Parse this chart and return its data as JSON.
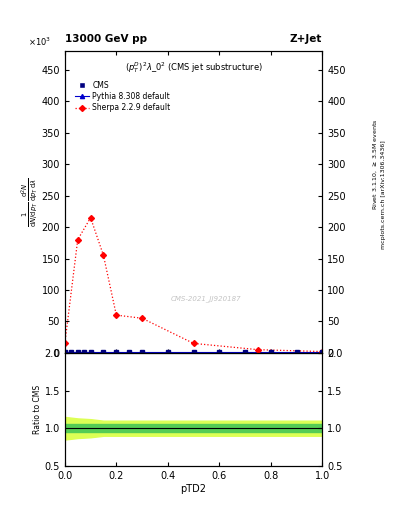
{
  "title_left": "13000 GeV pp",
  "title_right": "Z+Jet",
  "subtitle": "$(p_T^D)^2\\lambda\\_0^2$ (CMS jet substructure)",
  "watermark": "CMS-2021_JJ920187",
  "xlabel": "pTD2",
  "ylim_main": [
    0,
    480
  ],
  "ylim_ratio": [
    0.5,
    2.0
  ],
  "yticks_main": [
    0,
    50,
    100,
    150,
    200,
    250,
    300,
    350,
    400,
    450
  ],
  "yticks_ratio": [
    0.5,
    1.0,
    1.5,
    2.0
  ],
  "xlim": [
    0,
    1
  ],
  "cms_x": [
    0.0,
    0.025,
    0.05,
    0.075,
    0.1,
    0.15,
    0.2,
    0.25,
    0.3,
    0.4,
    0.5,
    0.6,
    0.7,
    0.8,
    0.9,
    1.0
  ],
  "cms_y": [
    2,
    2,
    2,
    2,
    2,
    2,
    2,
    2,
    2,
    2,
    2,
    2,
    2,
    2,
    2,
    2
  ],
  "pythia_x": [
    0.0,
    0.025,
    0.05,
    0.075,
    0.1,
    0.15,
    0.2,
    0.25,
    0.3,
    0.4,
    0.5,
    0.6,
    0.7,
    0.8,
    0.9,
    1.0
  ],
  "pythia_y": [
    2,
    2,
    2,
    2,
    2,
    2,
    2,
    2,
    2,
    2,
    2,
    2,
    2,
    2,
    2,
    2
  ],
  "sherpa_x": [
    0.0,
    0.05,
    0.1,
    0.15,
    0.2,
    0.3,
    0.5,
    0.75,
    1.0
  ],
  "sherpa_y": [
    15,
    180,
    215,
    155,
    60,
    55,
    15,
    5,
    2
  ],
  "cms_color": "#000080",
  "pythia_color": "#0000cc",
  "sherpa_color": "#ff0000",
  "ratio_x": [
    0.0,
    0.05,
    0.1,
    0.15,
    0.2,
    0.25,
    0.3,
    0.35,
    0.4,
    0.45,
    0.5,
    0.55,
    0.6,
    0.65,
    0.7,
    0.75,
    0.8,
    0.85,
    0.9,
    0.95,
    1.0
  ],
  "ratio_green_y1": [
    0.95,
    0.95,
    0.95,
    0.95,
    0.95,
    0.95,
    0.95,
    0.95,
    0.95,
    0.95,
    0.95,
    0.95,
    0.95,
    0.95,
    0.95,
    0.95,
    0.95,
    0.95,
    0.95,
    0.95,
    0.95
  ],
  "ratio_green_y2": [
    1.05,
    1.05,
    1.05,
    1.05,
    1.05,
    1.05,
    1.05,
    1.05,
    1.05,
    1.05,
    1.05,
    1.05,
    1.05,
    1.05,
    1.05,
    1.05,
    1.05,
    1.05,
    1.05,
    1.05,
    1.05
  ],
  "ratio_yellow_y1": [
    0.85,
    0.87,
    0.88,
    0.9,
    0.9,
    0.9,
    0.9,
    0.9,
    0.9,
    0.9,
    0.9,
    0.9,
    0.9,
    0.9,
    0.9,
    0.9,
    0.9,
    0.9,
    0.9,
    0.9,
    0.9
  ],
  "ratio_yellow_y2": [
    1.15,
    1.13,
    1.12,
    1.1,
    1.1,
    1.1,
    1.1,
    1.1,
    1.1,
    1.1,
    1.1,
    1.1,
    1.1,
    1.1,
    1.1,
    1.1,
    1.1,
    1.1,
    1.1,
    1.1,
    1.1
  ],
  "bg_color": "#ffffff",
  "tick_fs": 7,
  "label_fs": 7
}
